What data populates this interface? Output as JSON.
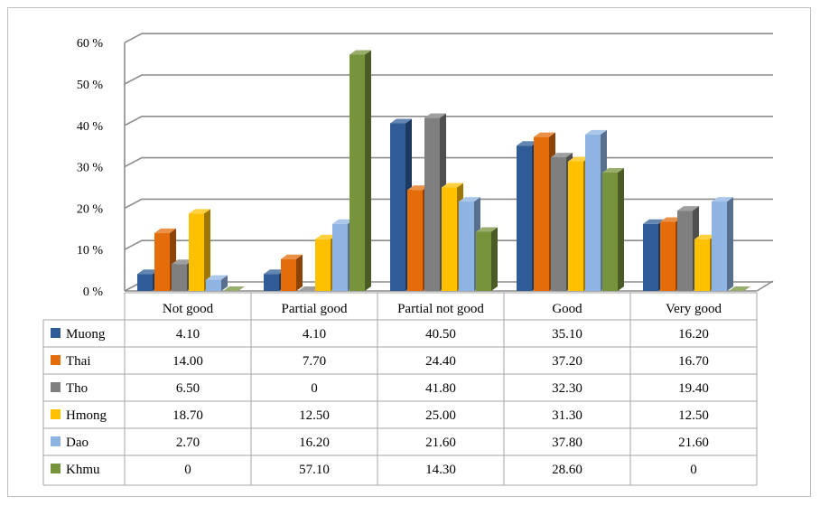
{
  "chart_data": {
    "type": "bar",
    "title": "",
    "xlabel": "",
    "ylabel": "",
    "ylim": [
      0,
      60
    ],
    "yticks": [
      "0 %",
      "10 %",
      "20 %",
      "30 %",
      "40 %",
      "50 %",
      "60 %"
    ],
    "grid": true,
    "legend": "data-table",
    "categories": [
      "Not good",
      "Partial good",
      "Partial not good",
      "Good",
      "Very good"
    ],
    "series": [
      {
        "name": "Muong",
        "color": "#2f5c97",
        "values": [
          4.1,
          4.1,
          40.5,
          35.1,
          16.2
        ],
        "labels": [
          "4.10",
          "4.10",
          "40.50",
          "35.10",
          "16.20"
        ]
      },
      {
        "name": "Thai",
        "color": "#e46c0a",
        "values": [
          14.0,
          7.7,
          24.4,
          37.2,
          16.7
        ],
        "labels": [
          "14.00",
          "7.70",
          "24.40",
          "37.20",
          "16.70"
        ]
      },
      {
        "name": "Tho",
        "color": "#7f7f7f",
        "values": [
          6.5,
          0,
          41.8,
          32.3,
          19.4
        ],
        "labels": [
          "6.50",
          "0",
          "41.80",
          "32.30",
          "19.40"
        ]
      },
      {
        "name": "Hmong",
        "color": "#ffc000",
        "values": [
          18.7,
          12.5,
          25.0,
          31.3,
          12.5
        ],
        "labels": [
          "18.70",
          "12.50",
          "25.00",
          "31.30",
          "12.50"
        ]
      },
      {
        "name": "Dao",
        "color": "#8eb4e3",
        "values": [
          2.7,
          16.2,
          21.6,
          37.8,
          21.6
        ],
        "labels": [
          "2.70",
          "16.20",
          "21.60",
          "37.80",
          "21.60"
        ]
      },
      {
        "name": "Khmu",
        "color": "#77933c",
        "values": [
          0,
          57.1,
          14.3,
          28.6,
          0
        ],
        "labels": [
          "0",
          "57.10",
          "14.30",
          "28.60",
          "0"
        ]
      }
    ]
  }
}
